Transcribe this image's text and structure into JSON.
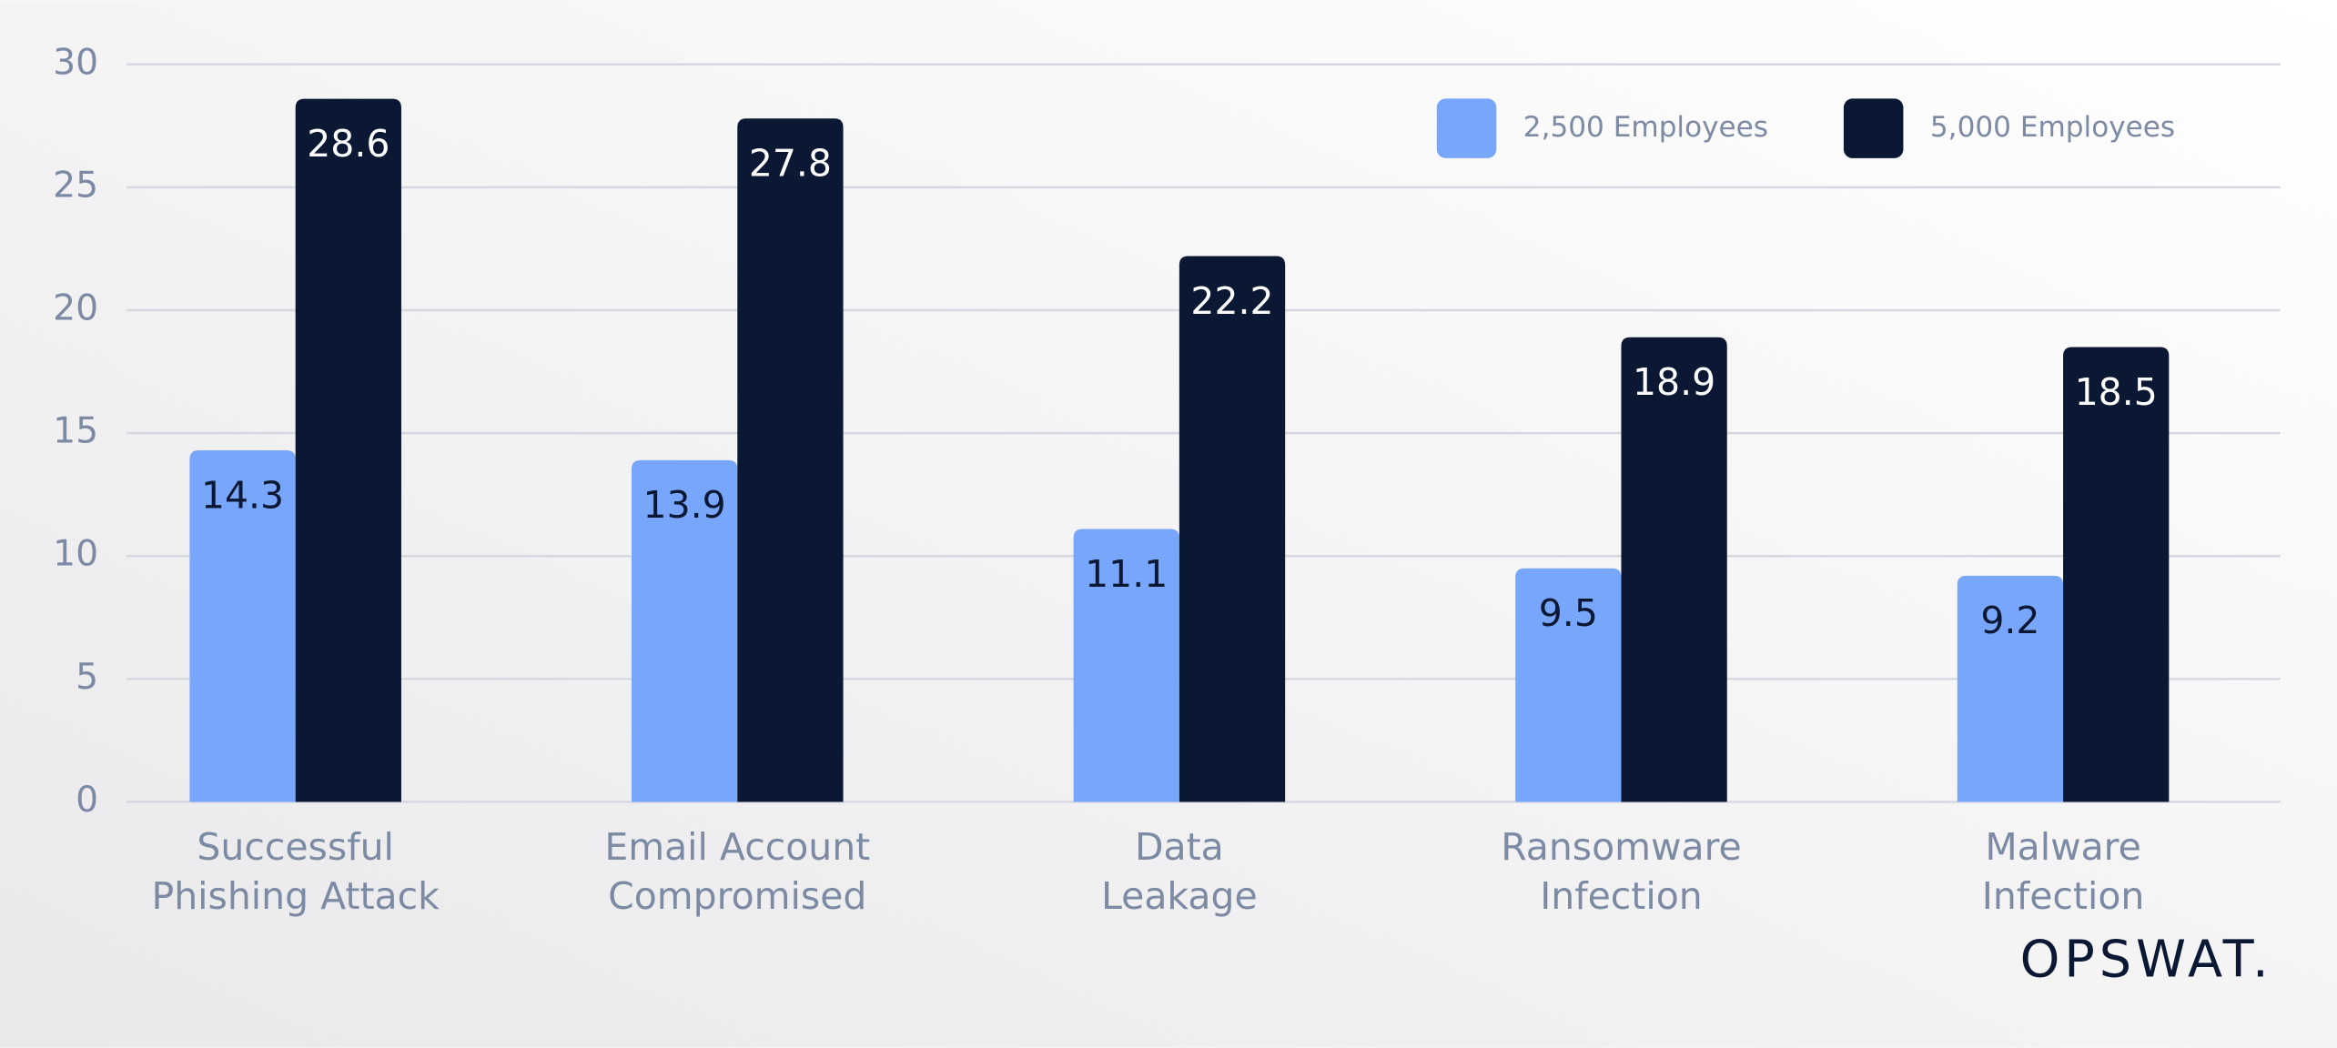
{
  "chart_data": {
    "type": "bar",
    "categories": [
      "Successful\nPhishing Attack",
      "Email Account\nCompromised",
      "Data\nLeakage",
      "Ransomware\nInfection",
      "Malware\nInfection"
    ],
    "series": [
      {
        "name": "2,500 Employees",
        "color": "#78a6fb",
        "label_color": "#0b1833",
        "values": [
          14.3,
          13.9,
          11.1,
          9.5,
          9.2
        ]
      },
      {
        "name": "5,000 Employees",
        "color": "#0b1833",
        "label_color": "#ffffff",
        "values": [
          28.6,
          27.8,
          22.2,
          18.9,
          18.5
        ]
      }
    ],
    "ylim": [
      0,
      30
    ],
    "yticks": [
      0,
      5,
      10,
      15,
      20,
      25,
      30
    ],
    "grid": true,
    "legend": "top-right"
  },
  "logo": "OPSWAT."
}
